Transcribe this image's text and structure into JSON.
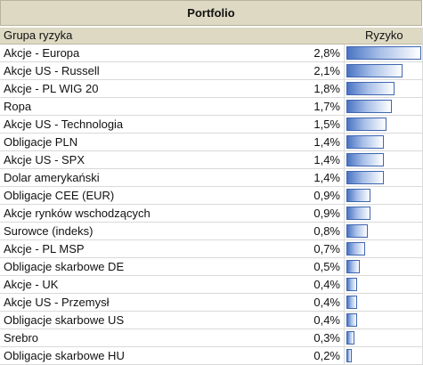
{
  "title": "Portfolio",
  "columns": {
    "group": "Grupa ryzyka",
    "risk": "Ryzyko"
  },
  "bar_color": "#4a74c4",
  "max_value": 2.8,
  "rows": [
    {
      "name": "Akcje - Europa",
      "value": "2,8%",
      "num": 2.8
    },
    {
      "name": "Akcje US - Russell",
      "value": "2,1%",
      "num": 2.1
    },
    {
      "name": "Akcje - PL WIG 20",
      "value": "1,8%",
      "num": 1.8
    },
    {
      "name": "Ropa",
      "value": "1,7%",
      "num": 1.7
    },
    {
      "name": "Akcje US - Technologia",
      "value": "1,5%",
      "num": 1.5
    },
    {
      "name": "Obligacje PLN",
      "value": "1,4%",
      "num": 1.4
    },
    {
      "name": "Akcje US - SPX",
      "value": "1,4%",
      "num": 1.4
    },
    {
      "name": "Dolar amerykański",
      "value": "1,4%",
      "num": 1.4
    },
    {
      "name": "Obligacje CEE (EUR)",
      "value": "0,9%",
      "num": 0.9
    },
    {
      "name": "Akcje rynków wschodzących",
      "value": "0,9%",
      "num": 0.9
    },
    {
      "name": "Surowce (indeks)",
      "value": "0,8%",
      "num": 0.8
    },
    {
      "name": "Akcje - PL MSP",
      "value": "0,7%",
      "num": 0.7
    },
    {
      "name": "Obligacje skarbowe DE",
      "value": "0,5%",
      "num": 0.5
    },
    {
      "name": "Akcje - UK",
      "value": "0,4%",
      "num": 0.4
    },
    {
      "name": "Akcje US - Przemysł",
      "value": "0,4%",
      "num": 0.4
    },
    {
      "name": "Obligacje skarbowe US",
      "value": "0,4%",
      "num": 0.4
    },
    {
      "name": "Srebro",
      "value": "0,3%",
      "num": 0.3
    },
    {
      "name": "Obligacje skarbowe HU",
      "value": "0,2%",
      "num": 0.2
    }
  ]
}
